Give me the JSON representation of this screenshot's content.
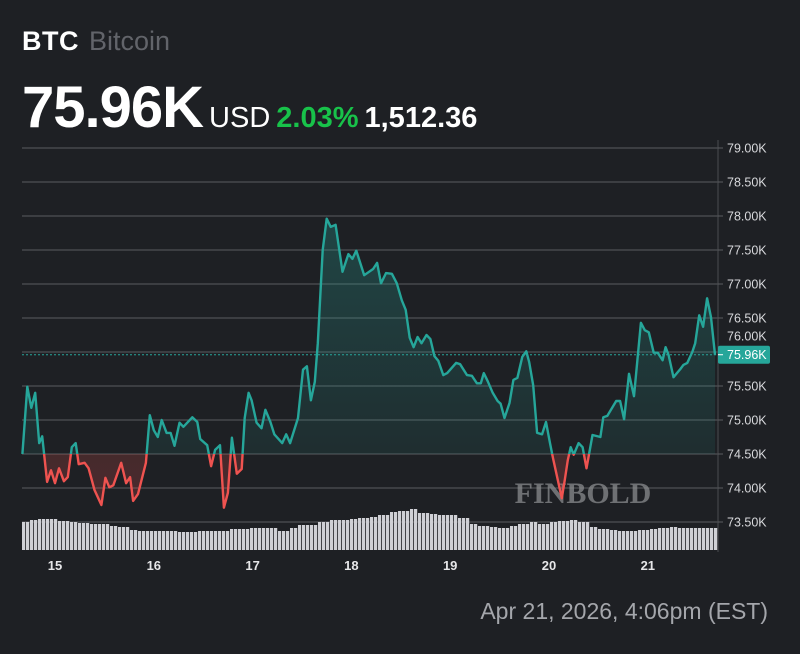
{
  "header": {
    "symbol": "BTC",
    "name": "Bitcoin",
    "price": "75.96K",
    "currency": "USD",
    "change_pct": "2.03%",
    "change_abs": "1,512.36"
  },
  "timestamp": "Apr 21, 2026, 4:06pm (EST)",
  "watermark": "FINBOLD",
  "colors": {
    "up": "#26a69a",
    "down": "#ef5350",
    "background": "#1e2024",
    "change_text": "#18c24a"
  },
  "chart_data": {
    "type": "line",
    "title": "BTC Bitcoin",
    "xlabel": "",
    "ylabel": "",
    "x_ticks": [
      "15",
      "16",
      "17",
      "18",
      "19",
      "20",
      "21"
    ],
    "x_tick_values": [
      15,
      16,
      17,
      18,
      19,
      20,
      21
    ],
    "y_ticks": [
      "79.00K",
      "78.50K",
      "78.00K",
      "77.50K",
      "77.00K",
      "76.50K",
      "76.00K",
      "75.50K",
      "75.00K",
      "74.50K",
      "74.00K",
      "73.50K"
    ],
    "y_tick_values": [
      79,
      78.5,
      78,
      77.5,
      77,
      76.5,
      76,
      75.5,
      75,
      74.5,
      74,
      73.5
    ],
    "ylim": [
      73.5,
      79.0
    ],
    "xlim": [
      14.67,
      21.68
    ],
    "baseline": 74.5,
    "last_price": 75.96,
    "last_price_label": "75.96K",
    "grid": true,
    "series": [
      {
        "name": "BTC/USD (K)",
        "x": [
          14.67,
          14.72,
          14.76,
          14.8,
          14.84,
          14.87,
          14.92,
          14.96,
          15.0,
          15.04,
          15.09,
          15.13,
          15.17,
          15.21,
          15.24,
          15.3,
          15.34,
          15.4,
          15.47,
          15.51,
          15.55,
          15.59,
          15.67,
          15.72,
          15.76,
          15.79,
          15.84,
          15.92,
          15.96,
          16.0,
          16.04,
          16.08,
          16.13,
          16.17,
          16.21,
          16.26,
          16.3,
          16.39,
          16.44,
          16.47,
          16.54,
          16.58,
          16.62,
          16.67,
          16.71,
          16.75,
          16.79,
          16.84,
          16.89,
          16.92,
          16.96,
          16.99,
          17.04,
          17.09,
          17.13,
          17.18,
          17.22,
          17.3,
          17.34,
          17.38,
          17.46,
          17.51,
          17.55,
          17.59,
          17.63,
          17.66,
          17.71,
          17.75,
          17.79,
          17.84,
          17.91,
          17.97,
          18.01,
          18.05,
          18.13,
          18.22,
          18.26,
          18.3,
          18.35,
          18.41,
          18.46,
          18.51,
          18.55,
          18.59,
          18.63,
          18.67,
          18.71,
          18.76,
          18.8,
          18.84,
          18.88,
          18.93,
          18.97,
          19.06,
          19.1,
          19.17,
          19.22,
          19.27,
          19.31,
          19.34,
          19.38,
          19.43,
          19.48,
          19.51,
          19.55,
          19.6,
          19.64,
          19.68,
          19.73,
          19.77,
          19.8,
          19.84,
          19.88,
          19.93,
          19.97,
          20.01,
          20.04,
          20.13,
          20.16,
          20.19,
          20.22,
          20.25,
          20.3,
          20.34,
          20.38,
          20.44,
          20.52,
          20.55,
          20.59,
          20.68,
          20.72,
          20.76,
          20.81,
          20.86,
          20.93,
          20.97,
          21.01,
          21.06,
          21.1,
          21.15,
          21.18,
          21.21,
          21.26,
          21.33,
          21.36,
          21.4,
          21.45,
          21.48,
          21.52,
          21.56,
          21.6,
          21.64,
          21.68
        ],
        "y": [
          74.5,
          75.49,
          75.18,
          75.4,
          74.66,
          74.76,
          74.09,
          74.26,
          74.07,
          74.29,
          74.1,
          74.16,
          74.6,
          74.66,
          74.35,
          74.37,
          74.29,
          73.97,
          73.75,
          74.15,
          74.01,
          74.04,
          74.37,
          74.07,
          74.16,
          73.81,
          73.91,
          74.37,
          75.07,
          74.85,
          74.75,
          75.0,
          74.81,
          74.81,
          74.62,
          74.96,
          74.9,
          75.04,
          74.97,
          74.72,
          74.63,
          74.32,
          74.56,
          74.63,
          73.71,
          73.93,
          74.74,
          74.21,
          74.28,
          75.03,
          75.4,
          75.29,
          74.96,
          74.88,
          75.15,
          74.97,
          74.79,
          74.66,
          74.79,
          74.66,
          75.03,
          75.74,
          75.79,
          75.29,
          75.56,
          76.13,
          77.5,
          77.96,
          77.84,
          77.87,
          77.18,
          77.44,
          77.37,
          77.49,
          77.13,
          77.22,
          77.31,
          77.01,
          77.16,
          77.15,
          77.01,
          76.76,
          76.62,
          76.21,
          76.07,
          76.22,
          76.13,
          76.25,
          76.19,
          75.94,
          75.87,
          75.66,
          75.69,
          75.84,
          75.82,
          75.66,
          75.65,
          75.54,
          75.54,
          75.69,
          75.57,
          75.4,
          75.28,
          75.24,
          75.03,
          75.25,
          75.59,
          75.62,
          75.93,
          76.01,
          75.85,
          75.51,
          74.81,
          74.79,
          74.97,
          74.66,
          74.44,
          73.85,
          74.12,
          74.41,
          74.6,
          74.49,
          74.66,
          74.6,
          74.29,
          74.78,
          74.75,
          75.04,
          75.06,
          75.28,
          75.28,
          75.01,
          75.68,
          75.35,
          76.43,
          76.32,
          76.29,
          75.99,
          75.99,
          75.88,
          76.07,
          75.96,
          75.63,
          75.75,
          75.81,
          75.84,
          76.0,
          76.13,
          76.54,
          76.37,
          76.79,
          76.51,
          75.96
        ]
      }
    ],
    "volume_relative": [
      28,
      30,
      31,
      31,
      29,
      28,
      27,
      26,
      26,
      24,
      23,
      20,
      19,
      19,
      19,
      19,
      18,
      18,
      19,
      19,
      19,
      21,
      21,
      22,
      22,
      22,
      19,
      22,
      25,
      25,
      28,
      30,
      30,
      31,
      32,
      33,
      35,
      38,
      39,
      41,
      37,
      36,
      35,
      35,
      32,
      26,
      24,
      23,
      22,
      24,
      26,
      28,
      26,
      28,
      29,
      30,
      28,
      23,
      21,
      20,
      19,
      19,
      20,
      21,
      22,
      23,
      22,
      22,
      22,
      22
    ]
  }
}
